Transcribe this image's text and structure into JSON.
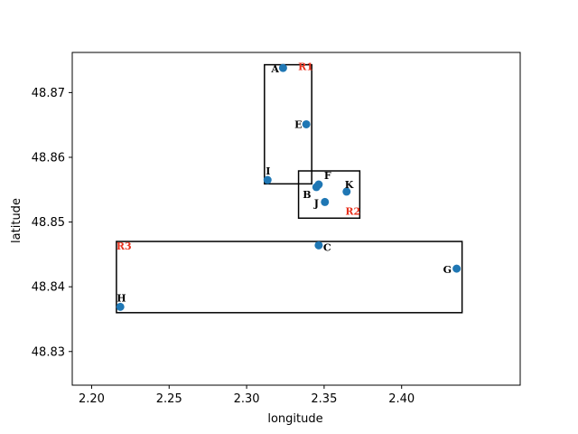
{
  "chart_data": {
    "type": "scatter",
    "title": "",
    "xlabel": "longitude",
    "ylabel": "latitude",
    "xlim": [
      2.1875,
      2.4765
    ],
    "ylim": [
      48.8248,
      48.8762
    ],
    "xticks": [
      2.2,
      2.25,
      2.3,
      2.35,
      2.4
    ],
    "xtick_labels": [
      "2.20",
      "2.25",
      "2.30",
      "2.35",
      "2.40"
    ],
    "yticks": [
      48.83,
      48.84,
      48.85,
      48.86,
      48.87
    ],
    "ytick_labels": [
      "48.83",
      "48.84",
      "48.85",
      "48.86",
      "48.87"
    ],
    "marker_color": "#1f77b4",
    "region_label_color": "#e8301c",
    "points": [
      {
        "label": "A",
        "x": 2.3235,
        "y": 48.8738
      },
      {
        "label": "E",
        "x": 2.3385,
        "y": 48.8651
      },
      {
        "label": "I",
        "x": 2.3135,
        "y": 48.8565
      },
      {
        "label": "F",
        "x": 2.3465,
        "y": 48.8558
      },
      {
        "label": "B",
        "x": 2.345,
        "y": 48.8554
      },
      {
        "label": "K",
        "x": 2.3645,
        "y": 48.8547
      },
      {
        "label": "J",
        "x": 2.3505,
        "y": 48.8531
      },
      {
        "label": "C",
        "x": 2.3465,
        "y": 48.8464
      },
      {
        "label": "G",
        "x": 2.4355,
        "y": 48.8428
      },
      {
        "label": "H",
        "x": 2.2185,
        "y": 48.8369
      }
    ],
    "regions": [
      {
        "label": "R1",
        "x0": 2.3115,
        "x1": 2.342,
        "y0": 48.8559,
        "y1": 48.8743
      },
      {
        "label": "R2",
        "x0": 2.3335,
        "x1": 2.373,
        "y0": 48.8506,
        "y1": 48.8579
      },
      {
        "label": "R3",
        "x0": 2.216,
        "x1": 2.439,
        "y0": 48.836,
        "y1": 48.847
      }
    ]
  }
}
